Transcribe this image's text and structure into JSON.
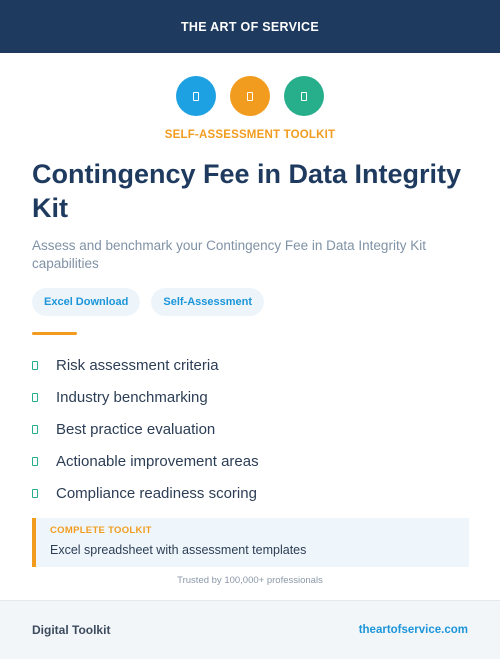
{
  "header": {
    "brand": "THE ART OF SERVICE",
    "background": "#1e3a5f"
  },
  "icons": [
    {
      "name": "document-icon",
      "color": "#1ea1e2"
    },
    {
      "name": "document-icon",
      "color": "#f29c1f"
    },
    {
      "name": "document-icon",
      "color": "#27ae8a"
    }
  ],
  "product": {
    "kicker": "SELF-ASSESSMENT TOOLKIT",
    "kicker_color": "#f29c1f",
    "title": "Contingency Fee in Data Integrity Kit",
    "subtitle": "Assess and benchmark your Contingency Fee in Data Integrity Kit capabilities"
  },
  "tags": [
    "Excel Download",
    "Self-Assessment"
  ],
  "accent_color": "#f29c1f",
  "features": [
    "Risk assessment criteria",
    "Industry benchmarking",
    "Best practice evaluation",
    "Actionable improvement areas",
    "Compliance readiness scoring"
  ],
  "callout": {
    "label": "COMPLETE TOOLKIT",
    "text": "Excel spreadsheet with assessment templates"
  },
  "trusted": "Trusted by 100,000+ professionals",
  "footer": {
    "left": "Digital Toolkit",
    "right": "theartofservice.com"
  }
}
